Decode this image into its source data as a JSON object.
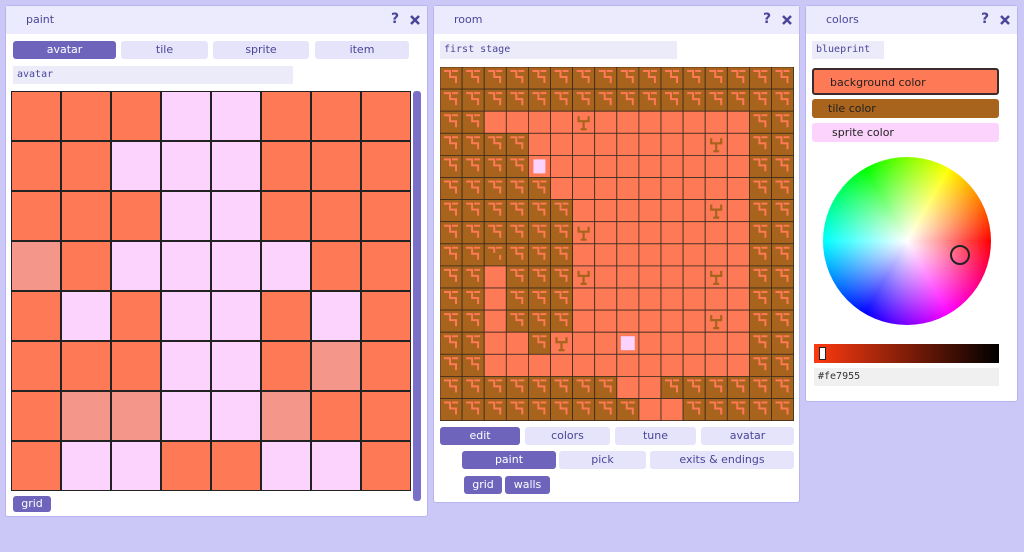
{
  "help": "?",
  "paint": {
    "title": "paint",
    "tabs": [
      "avatar",
      "tile",
      "sprite",
      "item"
    ],
    "name": "avatar",
    "toggle": "grid"
  },
  "room": {
    "title": "room",
    "name": "first stage",
    "tabs": [
      "edit",
      "colors",
      "tune",
      "avatar"
    ],
    "tools": [
      "paint",
      "pick",
      "exits & endings"
    ],
    "toggles": [
      "grid",
      "walls"
    ]
  },
  "colors": {
    "title": "colors",
    "palette": "blueprint",
    "options": [
      "background color",
      "tile color",
      "sprite color"
    ],
    "hex": "#fe7955"
  }
}
